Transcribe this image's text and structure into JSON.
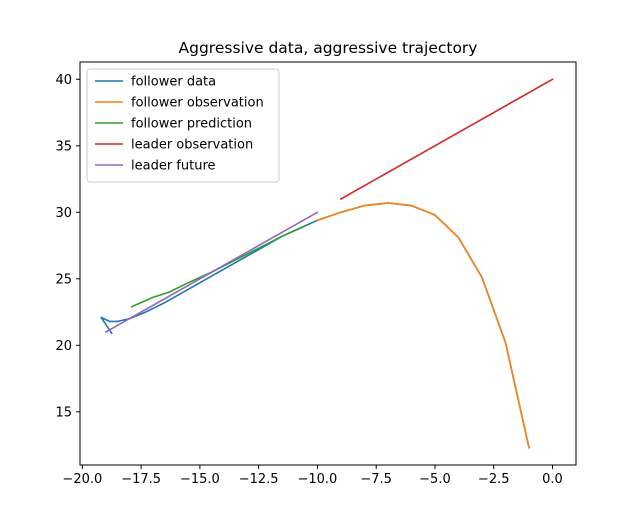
{
  "chart_data": {
    "type": "line",
    "title": "Aggressive data, aggressive trajectory",
    "xlabel": "",
    "ylabel": "",
    "xlim": [
      -20.1,
      1.0
    ],
    "ylim": [
      11.0,
      41.3
    ],
    "xticks": [
      -20.0,
      -17.5,
      -15.0,
      -12.5,
      -10.0,
      -7.5,
      -5.0,
      -2.5,
      0.0
    ],
    "xtick_labels": [
      "−20.0",
      "−17.5",
      "−15.0",
      "−12.5",
      "−10.0",
      "−7.5",
      "−5.0",
      "−2.5",
      "0.0"
    ],
    "yticks": [
      15,
      20,
      25,
      30,
      35,
      40
    ],
    "ytick_labels": [
      "15",
      "20",
      "25",
      "30",
      "35",
      "40"
    ],
    "grid": false,
    "legend_position": "top-left",
    "series": [
      {
        "name": "follower data",
        "color": "#1f77b4",
        "x": [
          -18.75,
          -19.2,
          -18.85,
          -18.5,
          -18.0,
          -17.3,
          -16.5,
          -15.5,
          -14.5,
          -13.5,
          -12.5,
          -11.5,
          -10.5,
          -10.0,
          -9.5,
          -9.0,
          -8.0,
          -7.0,
          -6.0,
          -5.0,
          -4.0,
          -3.0,
          -2.0,
          -1.0
        ],
        "y": [
          20.9,
          22.1,
          21.8,
          21.8,
          22.0,
          22.5,
          23.2,
          24.2,
          25.2,
          26.2,
          27.2,
          28.2,
          29.0,
          29.4,
          29.7,
          30.0,
          30.5,
          30.7,
          30.5,
          29.8,
          28.1,
          25.1,
          20.2,
          12.3
        ]
      },
      {
        "name": "follower observation",
        "color": "#ff7f0e",
        "x": [
          -10.0,
          -9.0,
          -8.0,
          -7.0,
          -6.0,
          -5.0,
          -4.0,
          -3.0,
          -2.0,
          -1.0
        ],
        "y": [
          29.4,
          30.0,
          30.5,
          30.7,
          30.5,
          29.8,
          28.1,
          25.1,
          20.2,
          12.3
        ]
      },
      {
        "name": "follower prediction",
        "color": "#2ca02c",
        "x": [
          -17.9,
          -17.0,
          -16.3,
          -15.5,
          -14.5,
          -13.5,
          -12.5,
          -11.5,
          -10.5
        ],
        "y": [
          22.9,
          23.6,
          24.0,
          24.7,
          25.5,
          26.4,
          27.3,
          28.2,
          29.0
        ]
      },
      {
        "name": "leader observation",
        "color": "#d62728",
        "x": [
          -9.0,
          0.0
        ],
        "y": [
          31.0,
          40.0
        ]
      },
      {
        "name": "leader future",
        "color": "#9467bd",
        "x": [
          -19.0,
          -10.0
        ],
        "y": [
          21.0,
          30.0
        ]
      }
    ]
  }
}
